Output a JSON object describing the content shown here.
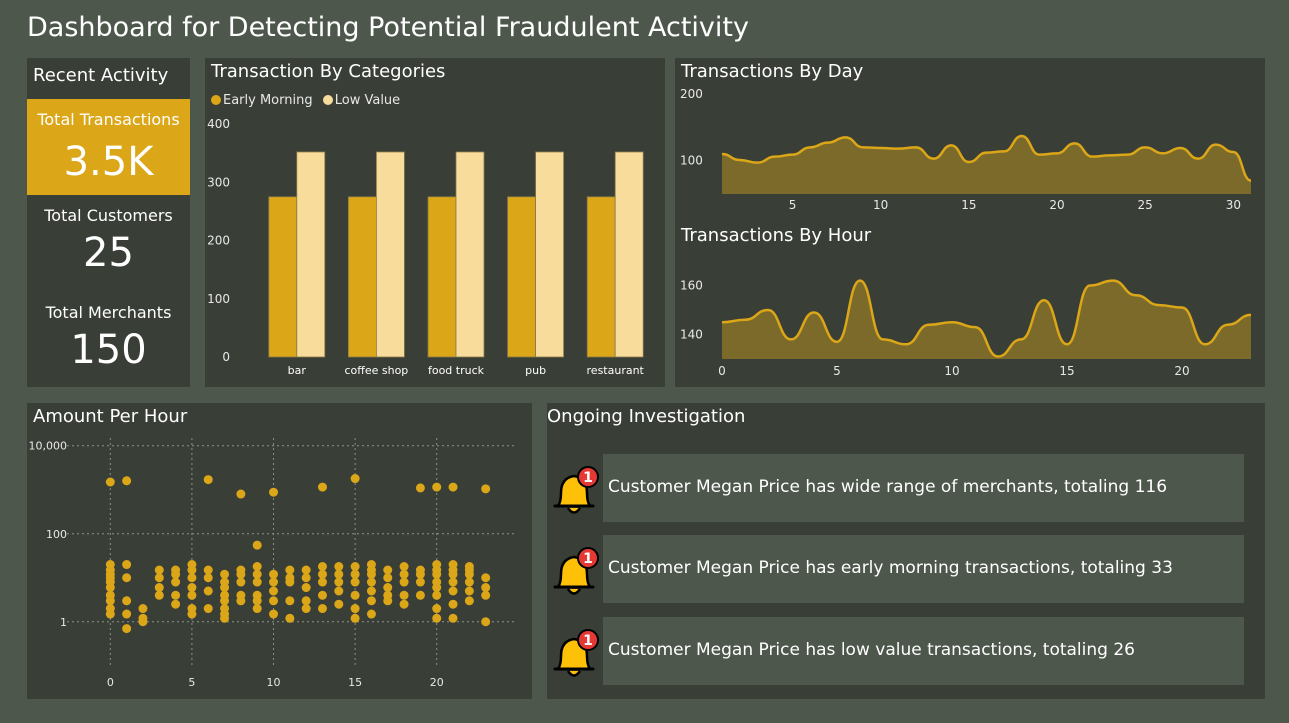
{
  "title": "Dashboard for Detecting Potential Fraudulent Activity",
  "kpis": {
    "heading": "Recent Activity",
    "total_transactions": {
      "label": "Total Transactions",
      "value": "3.5K"
    },
    "total_customers": {
      "label": "Total Customers",
      "value": "25"
    },
    "total_merchants": {
      "label": "Total Merchants",
      "value": "150"
    }
  },
  "colors": {
    "accent": "#dba617",
    "accent_light": "#f7dc9c",
    "panel": "#393e37",
    "background": "#4d574c",
    "area_fill": "#7b6a2a"
  },
  "chart_data": [
    {
      "id": "categories",
      "type": "bar",
      "title": "Transaction By Categories",
      "categories": [
        "bar",
        "coffee shop",
        "food truck",
        "pub",
        "restaurant"
      ],
      "series": [
        {
          "name": "Early Morning",
          "color": "#dba617",
          "values": [
            275,
            275,
            275,
            275,
            275
          ]
        },
        {
          "name": "Low Value",
          "color": "#f7dc9c",
          "values": [
            352,
            352,
            352,
            352,
            352
          ]
        }
      ],
      "ylim": [
        0,
        400
      ],
      "yticks": [
        0,
        100,
        200,
        300,
        400
      ],
      "legend": "top-left"
    },
    {
      "id": "by_day",
      "type": "area",
      "title": "Transactions By Day",
      "x": [
        1,
        2,
        3,
        4,
        5,
        6,
        7,
        8,
        9,
        10,
        11,
        12,
        13,
        14,
        15,
        16,
        17,
        18,
        19,
        20,
        21,
        22,
        23,
        24,
        25,
        26,
        27,
        28,
        29,
        30,
        31
      ],
      "values": [
        110,
        101,
        97,
        106,
        109,
        120,
        127,
        135,
        120,
        119,
        118,
        120,
        103,
        123,
        98,
        112,
        114,
        137,
        109,
        111,
        126,
        106,
        108,
        109,
        120,
        111,
        119,
        103,
        124,
        113,
        70
      ],
      "ylim": [
        50,
        200
      ],
      "yticks": [
        100,
        200
      ],
      "xticks": [
        5,
        10,
        15,
        20,
        25,
        30
      ]
    },
    {
      "id": "by_hour",
      "type": "area",
      "title": "Transactions By Hour",
      "x": [
        0,
        1,
        2,
        3,
        4,
        5,
        6,
        7,
        8,
        9,
        10,
        11,
        12,
        13,
        14,
        15,
        16,
        17,
        18,
        19,
        20,
        21,
        22,
        23
      ],
      "values": [
        145,
        146,
        150,
        138,
        149,
        137,
        162,
        138,
        136,
        144,
        145,
        143,
        131,
        138,
        154,
        136,
        160,
        162,
        156,
        152,
        151,
        136,
        144,
        148
      ],
      "ylim": [
        130,
        170
      ],
      "yticks": [
        140,
        160
      ],
      "xticks": [
        0,
        5,
        10,
        15,
        20
      ]
    },
    {
      "id": "amount_per_hour",
      "type": "scatter",
      "title": "Amount Per Hour",
      "ylog": true,
      "ylim": [
        0.5,
        15000
      ],
      "yticks": [
        1,
        100,
        10000
      ],
      "ytick_labels": [
        "1",
        "100",
        "10,000"
      ],
      "xlim": [
        -1,
        24
      ],
      "xticks": [
        0,
        5,
        10,
        15,
        20
      ],
      "grid": true,
      "outliers": [
        [
          0,
          1500
        ],
        [
          1,
          1600
        ],
        [
          6,
          1700
        ],
        [
          8,
          800
        ],
        [
          9,
          55
        ],
        [
          10,
          880
        ],
        [
          13,
          1150
        ],
        [
          15,
          1800
        ],
        [
          19,
          1100
        ],
        [
          20,
          1150
        ],
        [
          21,
          1150
        ],
        [
          23,
          1050
        ]
      ],
      "points_per_hour": [
        [
          1.5,
          2,
          3,
          4,
          6,
          8,
          10,
          12,
          15,
          20
        ],
        [
          0.7,
          1.5,
          3,
          10,
          20
        ],
        [
          1,
          1.2,
          2
        ],
        [
          4,
          6,
          10,
          15
        ],
        [
          2.5,
          4,
          8,
          12,
          15
        ],
        [
          1.5,
          2,
          4,
          6,
          10,
          15,
          20
        ],
        [
          2,
          5,
          10,
          15
        ],
        [
          1.2,
          1.5,
          2,
          3,
          4,
          6,
          8,
          12
        ],
        [
          3,
          4,
          8,
          12,
          15
        ],
        [
          2,
          3,
          4,
          8,
          12,
          18
        ],
        [
          1.5,
          3,
          5,
          8,
          12
        ],
        [
          1.2,
          3,
          8,
          10,
          15
        ],
        [
          2,
          3,
          6,
          10,
          15
        ],
        [
          2,
          4,
          8,
          12,
          18
        ],
        [
          2.5,
          5,
          8,
          12,
          18
        ],
        [
          1.2,
          2,
          4,
          8,
          12,
          18
        ],
        [
          1.5,
          3,
          5,
          8,
          12,
          15,
          20
        ],
        [
          3,
          4,
          6,
          10,
          15
        ],
        [
          2.5,
          4,
          8,
          12,
          18
        ],
        [
          4,
          8,
          12,
          15
        ],
        [
          1.2,
          2,
          4,
          6,
          8,
          12,
          15,
          20
        ],
        [
          1.2,
          2.5,
          5,
          8,
          12,
          15,
          20
        ],
        [
          3,
          5,
          8,
          12,
          15,
          18
        ],
        [
          1,
          4,
          6,
          10
        ]
      ]
    }
  ],
  "investigation": {
    "title": "Ongoing Investigation",
    "badge": "1",
    "items": [
      {
        "text": "Customer Megan Price has wide range of merchants, totaling 116"
      },
      {
        "text": "Customer Megan Price has early morning transactions, totaling 33"
      },
      {
        "text": "Customer Megan Price has low value transactions, totaling 26"
      }
    ]
  }
}
